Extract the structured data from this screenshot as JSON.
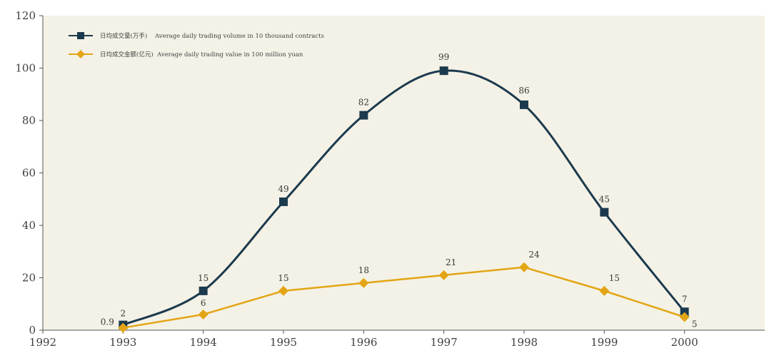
{
  "chart_data": {
    "type": "line",
    "title": "",
    "xlabel": "",
    "ylabel": "",
    "x": [
      1993,
      1994,
      1995,
      1996,
      1997,
      1998,
      1999,
      2000
    ],
    "xlim": [
      1992,
      2001
    ],
    "x_ticks": [
      "1992",
      "1993",
      "1994",
      "1995",
      "1996",
      "1997",
      "1998",
      "1999",
      "2000"
    ],
    "ylim": [
      0,
      120
    ],
    "y_ticks": [
      "0",
      "20",
      "40",
      "60",
      "80",
      "100",
      "120"
    ],
    "grid": false,
    "legend_position": "top-left",
    "series": [
      {
        "name": "日均成交量(万手)    Average daily trading volume in 10 thousand contracts",
        "values": [
          2,
          15,
          49,
          82,
          99,
          86,
          45,
          7
        ],
        "labels": [
          "2",
          "15",
          "49",
          "82",
          "99",
          "86",
          "45",
          "7"
        ],
        "color": "#1c3a4e",
        "marker": "square",
        "smooth": true
      },
      {
        "name": "日均成交金额(亿元)  Average daily trading value in 100 million yuan",
        "values": [
          0.9,
          6,
          15,
          18,
          21,
          24,
          15,
          5
        ],
        "labels": [
          "0.9",
          "6",
          "15",
          "18",
          "21",
          "24",
          "15",
          "5"
        ],
        "color": "#e3a516",
        "marker": "diamond",
        "smooth": false
      }
    ],
    "colors": {
      "background": "#f4f2e6",
      "axis": "#555555"
    }
  }
}
